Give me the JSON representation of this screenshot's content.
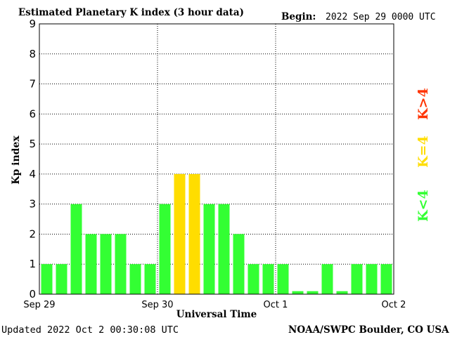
{
  "header": {
    "title": "Estimated Planetary K index (3 hour data)",
    "begin_label": "Begin:",
    "begin_value": "2022 Sep 29 0000 UTC"
  },
  "footer": {
    "updated": "Updated 2022 Oct  2 00:30:08 UTC",
    "source": "NOAA/SWPC Boulder, CO USA"
  },
  "legend": {
    "high": "K>4",
    "mid": "K=4",
    "low": "K<4"
  },
  "colors": {
    "low": "#33ff33",
    "mid": "#ffdd00",
    "high": "#ff3300",
    "grid": "#000000"
  },
  "chart_data": {
    "type": "bar",
    "title": "Estimated Planetary K index (3 hour data)",
    "xlabel": "Universal Time",
    "ylabel": "Kp index",
    "ylim": [
      0,
      9
    ],
    "yticks": [
      "0",
      "1",
      "2",
      "3",
      "4",
      "5",
      "6",
      "7",
      "8",
      "9"
    ],
    "xticks": [
      "Sep 29",
      "Sep 30",
      "Oct 1",
      "Oct 2"
    ],
    "grid": true,
    "interval_hours": 3,
    "values": [
      1,
      1,
      3,
      2,
      2,
      2,
      1,
      1,
      3,
      4,
      4,
      3,
      3,
      2,
      1,
      1,
      1,
      0,
      0,
      1,
      0,
      1,
      1,
      1
    ]
  }
}
